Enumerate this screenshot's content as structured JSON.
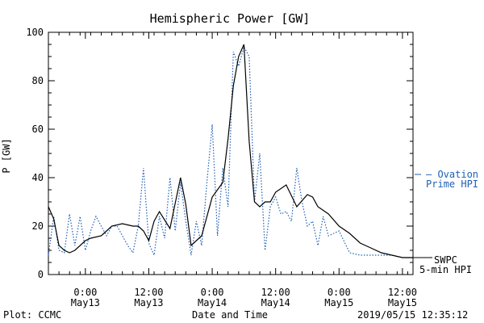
{
  "chart_data": {
    "type": "line",
    "title": "Hemispheric Power [GW]",
    "xlabel": "Date and Time",
    "ylabel": "P [GW]",
    "ylim": [
      0,
      100
    ],
    "yticks": [
      0,
      20,
      40,
      60,
      80,
      100
    ],
    "xlim": [
      "2019-05-12 17:00",
      "2019-05-15 14:00"
    ],
    "xticks": [
      {
        "t": "2019-05-13 00:00",
        "time": "0:00",
        "date": "May13"
      },
      {
        "t": "2019-05-13 12:00",
        "time": "12:00",
        "date": "May13"
      },
      {
        "t": "2019-05-14 00:00",
        "time": "0:00",
        "date": "May14"
      },
      {
        "t": "2019-05-14 12:00",
        "time": "12:00",
        "date": "May14"
      },
      {
        "t": "2019-05-15 00:00",
        "time": "0:00",
        "date": "May15"
      },
      {
        "t": "2019-05-15 12:00",
        "time": "12:00",
        "date": "May15"
      }
    ],
    "grid": false,
    "series": [
      {
        "name": "SWPC 5-min HPI",
        "color": "#000000",
        "style": "solid",
        "x": [
          "2019-05-12 17:00",
          "2019-05-12 18:00",
          "2019-05-12 19:00",
          "2019-05-12 20:00",
          "2019-05-12 21:00",
          "2019-05-12 22:00",
          "2019-05-13 00:00",
          "2019-05-13 01:00",
          "2019-05-13 03:00",
          "2019-05-13 05:00",
          "2019-05-13 07:00",
          "2019-05-13 09:00",
          "2019-05-13 10:00",
          "2019-05-13 11:00",
          "2019-05-13 12:00",
          "2019-05-13 13:00",
          "2019-05-13 14:00",
          "2019-05-13 16:00",
          "2019-05-13 18:00",
          "2019-05-13 19:00",
          "2019-05-13 20:00",
          "2019-05-13 22:00",
          "2019-05-14 00:00",
          "2019-05-14 01:00",
          "2019-05-14 02:00",
          "2019-05-14 03:00",
          "2019-05-14 04:00",
          "2019-05-14 05:00",
          "2019-05-14 06:00",
          "2019-05-14 07:00",
          "2019-05-14 08:00",
          "2019-05-14 09:00",
          "2019-05-14 10:00",
          "2019-05-14 11:00",
          "2019-05-14 12:00",
          "2019-05-14 14:00",
          "2019-05-14 16:00",
          "2019-05-14 18:00",
          "2019-05-14 19:00",
          "2019-05-14 20:00",
          "2019-05-14 22:00",
          "2019-05-15 00:00",
          "2019-05-15 02:00",
          "2019-05-15 04:00",
          "2019-05-15 06:00",
          "2019-05-15 08:00",
          "2019-05-15 10:00",
          "2019-05-15 12:00",
          "2019-05-15 14:00"
        ],
        "y": [
          28,
          23,
          12,
          10,
          9,
          10,
          14,
          15,
          16,
          20,
          21,
          20,
          20,
          18,
          14,
          22,
          26,
          19,
          40,
          29,
          12,
          16,
          32,
          35,
          38,
          56,
          78,
          90,
          95,
          55,
          30,
          28,
          30,
          30,
          34,
          37,
          28,
          33,
          32,
          28,
          25,
          20,
          17,
          13,
          11,
          9,
          8,
          7,
          7
        ]
      },
      {
        "name": "Ovation Prime HPI",
        "color": "#1f5fb5",
        "style": "dotted",
        "x": [
          "2019-05-12 17:00",
          "2019-05-12 18:00",
          "2019-05-12 19:00",
          "2019-05-12 20:00",
          "2019-05-12 21:00",
          "2019-05-12 22:00",
          "2019-05-12 23:00",
          "2019-05-13 00:00",
          "2019-05-13 01:00",
          "2019-05-13 02:00",
          "2019-05-13 03:00",
          "2019-05-13 04:00",
          "2019-05-13 05:00",
          "2019-05-13 06:00",
          "2019-05-13 07:00",
          "2019-05-13 08:00",
          "2019-05-13 09:00",
          "2019-05-13 10:00",
          "2019-05-13 11:00",
          "2019-05-13 12:00",
          "2019-05-13 13:00",
          "2019-05-13 14:00",
          "2019-05-13 15:00",
          "2019-05-13 16:00",
          "2019-05-13 17:00",
          "2019-05-13 18:00",
          "2019-05-13 19:00",
          "2019-05-13 20:00",
          "2019-05-13 21:00",
          "2019-05-13 22:00",
          "2019-05-13 23:00",
          "2019-05-14 00:00",
          "2019-05-14 01:00",
          "2019-05-14 02:00",
          "2019-05-14 03:00",
          "2019-05-14 04:00",
          "2019-05-14 05:00",
          "2019-05-14 06:00",
          "2019-05-14 07:00",
          "2019-05-14 08:00",
          "2019-05-14 09:00",
          "2019-05-14 10:00",
          "2019-05-14 11:00",
          "2019-05-14 12:00",
          "2019-05-14 13:00",
          "2019-05-14 14:00",
          "2019-05-14 15:00",
          "2019-05-14 16:00",
          "2019-05-14 17:00",
          "2019-05-14 18:00",
          "2019-05-14 19:00",
          "2019-05-14 20:00",
          "2019-05-14 21:00",
          "2019-05-14 22:00",
          "2019-05-15 00:00",
          "2019-05-15 02:00",
          "2019-05-15 04:00",
          "2019-05-15 06:00",
          "2019-05-15 08:00",
          "2019-05-15 10:00",
          "2019-05-15 12:00",
          "2019-05-15 14:00"
        ],
        "y": [
          8,
          24,
          10,
          9,
          25,
          12,
          24,
          10,
          18,
          24,
          20,
          16,
          20,
          20,
          16,
          12,
          9,
          20,
          44,
          13,
          8,
          24,
          15,
          40,
          18,
          38,
          22,
          8,
          22,
          12,
          38,
          62,
          16,
          44,
          28,
          92,
          86,
          94,
          90,
          30,
          50,
          10,
          28,
          32,
          25,
          26,
          22,
          44,
          30,
          20,
          22,
          12,
          24,
          16,
          18,
          9,
          8,
          8,
          8,
          8,
          7,
          7
        ]
      }
    ]
  },
  "legend": {
    "swpc_line1": "SWPC",
    "swpc_line2": "5-min HPI",
    "ovation_line1": "— Ovation",
    "ovation_line2": "Prime HPI"
  },
  "footer": {
    "source": "Plot: CCMC",
    "timestamp": "2019/05/15 12:35:12"
  }
}
